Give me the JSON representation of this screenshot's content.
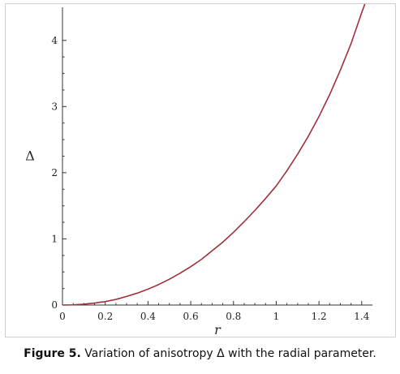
{
  "chart_data": {
    "type": "line",
    "title": "",
    "xlabel": "r",
    "ylabel": "Δ",
    "xlim": [
      0,
      1.45
    ],
    "ylim": [
      0,
      4.5
    ],
    "x_ticks": [
      0,
      0.2,
      0.4,
      0.6,
      0.8,
      1,
      1.2,
      1.4
    ],
    "x_tick_labels": [
      "0",
      "0.2",
      "0.4",
      "0.6",
      "0.8",
      "1",
      "1.2",
      "1.4"
    ],
    "y_ticks": [
      0,
      1,
      2,
      3,
      4
    ],
    "y_tick_labels": [
      "0",
      "1",
      "2",
      "3",
      "4"
    ],
    "grid": false,
    "line_color": "#a0303a",
    "series": [
      {
        "x": [
          0,
          0.05,
          0.1,
          0.15,
          0.2,
          0.25,
          0.3,
          0.35,
          0.4,
          0.45,
          0.5,
          0.55,
          0.6,
          0.65,
          0.7,
          0.75,
          0.8,
          0.85,
          0.9,
          0.95,
          1.0,
          1.05,
          1.1,
          1.15,
          1.2,
          1.25,
          1.3,
          1.35,
          1.4,
          1.42
        ],
        "y": [
          0,
          0.003,
          0.013,
          0.03,
          0.052,
          0.085,
          0.13,
          0.18,
          0.24,
          0.31,
          0.39,
          0.48,
          0.58,
          0.69,
          0.82,
          0.95,
          1.1,
          1.26,
          1.43,
          1.61,
          1.8,
          2.03,
          2.28,
          2.55,
          2.85,
          3.18,
          3.55,
          3.95,
          4.42,
          4.6
        ]
      }
    ]
  },
  "caption": {
    "label": "Figure 5.",
    "text": " Variation of anisotropy Δ with the radial parameter."
  }
}
